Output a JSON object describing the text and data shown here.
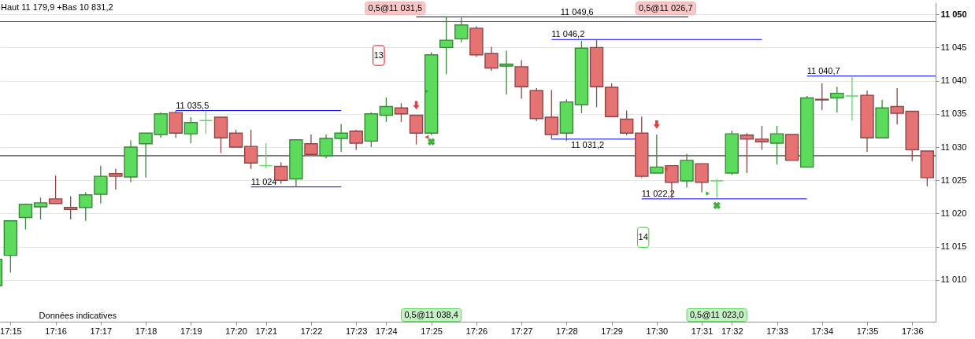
{
  "chart_data": {
    "type": "candlestick",
    "categories": [
      null,
      "17:15",
      null,
      null,
      "17:16",
      null,
      null,
      "17:17",
      null,
      null,
      "17:18",
      null,
      null,
      "17:19",
      null,
      null,
      "17:20",
      null,
      "17:21",
      null,
      null,
      "17:22",
      null,
      null,
      "17:23",
      null,
      "17:24",
      null,
      null,
      "17:25",
      null,
      null,
      "17:26",
      null,
      null,
      "17:27",
      null,
      null,
      "17:28",
      null,
      null,
      "17:29",
      null,
      null,
      "17:30",
      null,
      null,
      "17:31",
      null,
      "17:32",
      null,
      null,
      "17:33",
      null,
      null,
      "17:34",
      null,
      null,
      "17:35",
      null,
      null,
      "17:36",
      null
    ],
    "ohlc": [
      [
        11009.1,
        11013.1,
        11009.1,
        11013.1
      ],
      [
        11013.7,
        11018.9,
        11011.1,
        11018.9
      ],
      [
        11019.4,
        11021.5,
        11017.6,
        11021.4
      ],
      [
        11021.0,
        11022.4,
        11019.1,
        11021.6
      ],
      [
        11022.2,
        11025.7,
        11021.5,
        11021.5
      ],
      [
        11020.9,
        11022.6,
        11019.1,
        11020.6
      ],
      [
        11020.9,
        11023.2,
        11018.9,
        11022.8
      ],
      [
        11022.9,
        11027.2,
        11021.5,
        11025.6
      ],
      [
        11026.0,
        11026.7,
        11023.6,
        11025.6
      ],
      [
        11025.5,
        11031.0,
        11024.7,
        11030.0
      ],
      [
        11030.5,
        11032.1,
        11025.4,
        11032.1
      ],
      [
        11031.9,
        11035.2,
        11031.4,
        11035.0
      ],
      [
        11035.2,
        11035.5,
        11031.4,
        11032.1
      ],
      [
        11032.0,
        11034.5,
        11030.6,
        11033.7
      ],
      [
        11034.0,
        11035.4,
        11032.0,
        11034.0
      ],
      [
        11034.5,
        11034.5,
        11029.1,
        11031.4
      ],
      [
        11032.1,
        11032.6,
        11030.0,
        11030.0
      ],
      [
        11030.1,
        11032.6,
        11026.7,
        11027.6
      ],
      [
        11027.2,
        11030.6,
        11026.8,
        11027.2
      ],
      [
        11027.1,
        11027.7,
        11024.5,
        11025.0
      ],
      [
        11025.2,
        11031.2,
        11024.0,
        11031.1
      ],
      [
        11030.5,
        11031.9,
        11028.9,
        11028.9
      ],
      [
        11028.7,
        11031.9,
        11028.3,
        11031.3
      ],
      [
        11031.3,
        11033.5,
        11029.3,
        11032.1
      ],
      [
        11032.4,
        11032.6,
        11029.6,
        11030.6
      ],
      [
        11030.9,
        11035.2,
        11030.0,
        11035.0
      ],
      [
        11034.8,
        11037.5,
        11033.8,
        11036.1
      ],
      [
        11035.9,
        11036.6,
        11033.8,
        11035.0
      ],
      [
        11034.8,
        11034.8,
        11030.4,
        11032.1
      ],
      [
        11032.1,
        11044.3,
        11031.8,
        11043.9
      ],
      [
        11045.0,
        11049.6,
        11041.0,
        11046.1
      ],
      [
        11046.3,
        11049.5,
        11045.8,
        11048.4
      ],
      [
        11047.9,
        11048.2,
        11043.6,
        11043.9
      ],
      [
        11044.1,
        11045.1,
        11041.5,
        11041.9
      ],
      [
        11042.2,
        11044.5,
        11037.9,
        11042.5
      ],
      [
        11042.1,
        11043.1,
        11037.3,
        11039.1
      ],
      [
        11038.5,
        11038.9,
        11033.9,
        11034.3
      ],
      [
        11034.5,
        11038.6,
        11031.2,
        11031.9
      ],
      [
        11032.1,
        11037.2,
        11030.9,
        11036.8
      ],
      [
        11036.4,
        11046.0,
        11035.1,
        11044.9
      ],
      [
        11045.0,
        11046.2,
        11036.0,
        11039.1
      ],
      [
        11039.0,
        11039.6,
        11034.6,
        11034.6
      ],
      [
        11034.2,
        11035.5,
        11031.8,
        11032.1
      ],
      [
        11032.1,
        11034.6,
        11025.4,
        11025.6
      ],
      [
        11026.1,
        11031.9,
        11026.1,
        11027.0
      ],
      [
        11027.2,
        11027.2,
        11022.2,
        11024.7
      ],
      [
        11024.9,
        11029.0,
        11023.9,
        11028.0
      ],
      [
        11027.5,
        11027.5,
        11023.2,
        11024.7
      ],
      [
        11024.9,
        11025.2,
        11022.4,
        11024.9
      ],
      [
        11026.1,
        11032.5,
        11025.8,
        11032.0
      ],
      [
        11031.8,
        11032.1,
        11026.1,
        11031.2
      ],
      [
        11031.2,
        11033.2,
        11029.6,
        11030.8
      ],
      [
        11030.6,
        11033.2,
        11027.4,
        11032.0
      ],
      [
        11031.9,
        11031.9,
        11028.0,
        11028.0
      ],
      [
        11027.0,
        11037.7,
        11027.0,
        11037.4
      ],
      [
        11037.2,
        11039.6,
        11035.6,
        11037.1
      ],
      [
        11037.4,
        11039.1,
        11035.2,
        11038.1
      ],
      [
        11037.7,
        11040.7,
        11034.0,
        11037.7
      ],
      [
        11037.8,
        11038.5,
        11029.3,
        11031.4
      ],
      [
        11031.4,
        11037.1,
        11031.4,
        11035.9
      ],
      [
        11036.1,
        11038.9,
        11033.4,
        11035.1
      ],
      [
        11035.4,
        11035.4,
        11027.9,
        11029.6
      ],
      [
        11029.4,
        11029.4,
        11024.1,
        11025.4
      ]
    ],
    "colors": [
      "#5cdb5c",
      "#5cdb5c",
      "#5cdb5c",
      "#5cdb5c",
      "#e57373",
      "#e57373",
      "#5cdb5c",
      "#5cdb5c",
      "#e57373",
      "#5cdb5c",
      "#5cdb5c",
      "#5cdb5c",
      "#e57373",
      "#5cdb5c",
      "#5cdb5c",
      "#e57373",
      "#e57373",
      "#e57373",
      "#5cdb5c",
      "#e57373",
      "#5cdb5c",
      "#e57373",
      "#5cdb5c",
      "#5cdb5c",
      "#e57373",
      "#5cdb5c",
      "#5cdb5c",
      "#e57373",
      "#e57373",
      "#5cdb5c",
      "#5cdb5c",
      "#5cdb5c",
      "#e57373",
      "#e57373",
      "#5cdb5c",
      "#e57373",
      "#e57373",
      "#e57373",
      "#5cdb5c",
      "#5cdb5c",
      "#e57373",
      "#e57373",
      "#e57373",
      "#e57373",
      "#5cdb5c",
      "#e57373",
      "#5cdb5c",
      "#e57373",
      "#5cdb5c",
      "#5cdb5c",
      "#e57373",
      "#e57373",
      "#5cdb5c",
      "#e57373",
      "#5cdb5c",
      "#e57373",
      "#5cdb5c",
      "#5cdb5c",
      "#e57373",
      "#5cdb5c",
      "#e57373",
      "#e57373",
      "#e57373"
    ],
    "ylim": [
      11003.7,
      11051.8
    ],
    "yticks": [
      {
        "value": 11010,
        "label": "11 010"
      },
      {
        "value": 11015,
        "label": "11 015"
      },
      {
        "value": 11020,
        "label": "11 020"
      },
      {
        "value": 11025,
        "label": "11 025"
      },
      {
        "value": 11030,
        "label": "11 030"
      },
      {
        "value": 11035,
        "label": "11 035"
      },
      {
        "value": 11040,
        "label": "11 040"
      },
      {
        "value": 11045,
        "label": "11 045"
      },
      {
        "value": 11050,
        "label": "11 050"
      }
    ],
    "grid": "y",
    "ref_lines": [
      {
        "axis": "y",
        "value": 11048.9,
        "color": "#ff0000"
      },
      {
        "axis": "y",
        "value": 11028.7,
        "color": "#000000"
      },
      {
        "axis": "y",
        "value": 11035.5,
        "label": "11 035,5",
        "color": "#0000ff"
      },
      {
        "axis": "y",
        "value": 11024,
        "label": "11 024",
        "color": "#0000ff"
      },
      {
        "axis": "y",
        "value": 11049.6,
        "label": "11 049,6",
        "color": "#0000ff"
      },
      {
        "axis": "y",
        "value": 11046.2,
        "label": "11 046,2",
        "color": "#0000ff"
      },
      {
        "axis": "y",
        "value": 11031.2,
        "label": "11 031,2",
        "color": "#0000ff"
      },
      {
        "axis": "y",
        "value": 11022.2,
        "label": "11 022,2",
        "color": "#0000ff"
      },
      {
        "axis": "y",
        "value": 11040.7,
        "label": "11 040,7",
        "color": "#0000ff"
      }
    ],
    "annotations": [
      "Haut 11 179,9 +Bas 10 831,2",
      "Données indicatives",
      "0,5@11 031,5",
      "0,5@11 026,7",
      "0,5@11 038,4",
      "0,5@11 023,0",
      "13",
      "14"
    ]
  }
}
